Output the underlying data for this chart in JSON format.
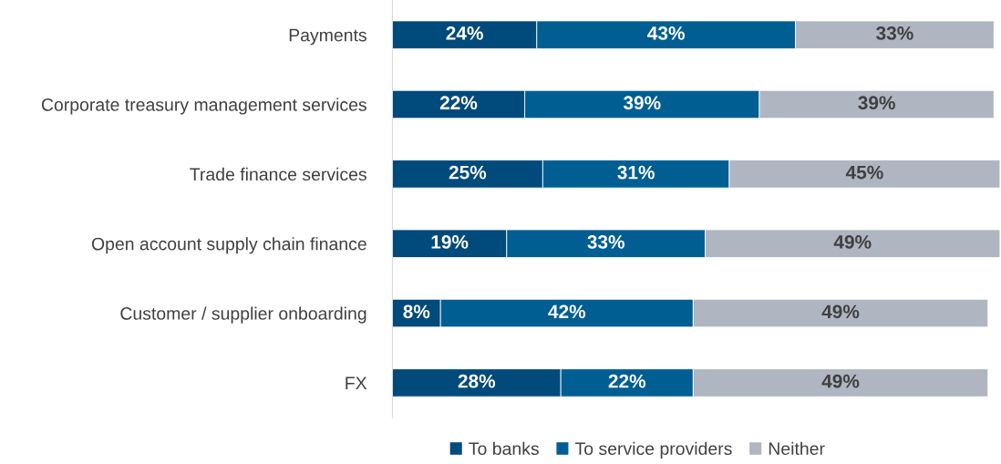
{
  "chart_data": {
    "type": "bar",
    "orientation": "horizontal",
    "stacked": true,
    "tick_labels": "y",
    "legend": "bottom",
    "grid": false,
    "categories": [
      "Payments",
      "Corporate treasury management services",
      "Trade finance services",
      "Open account supply chain finance",
      "Customer / supplier onboarding",
      "FX"
    ],
    "series": [
      {
        "name": "To banks",
        "color": "#004a7c",
        "values": [
          24,
          22,
          25,
          19,
          8,
          28
        ],
        "value_labels": [
          "24%",
          "22%",
          "25%",
          "19%",
          "8%",
          "28%"
        ]
      },
      {
        "name": "To service providers",
        "color": "#005e93",
        "values": [
          43,
          39,
          31,
          33,
          42,
          22
        ],
        "value_labels": [
          "43%",
          "39%",
          "31%",
          "33%",
          "42%",
          "22%"
        ]
      },
      {
        "name": "Neither",
        "color": "#afb5c1",
        "values": [
          33,
          39,
          45,
          49,
          49,
          49
        ],
        "value_labels": [
          "33%",
          "39%",
          "45%",
          "49%",
          "49%",
          "49%"
        ]
      }
    ]
  }
}
